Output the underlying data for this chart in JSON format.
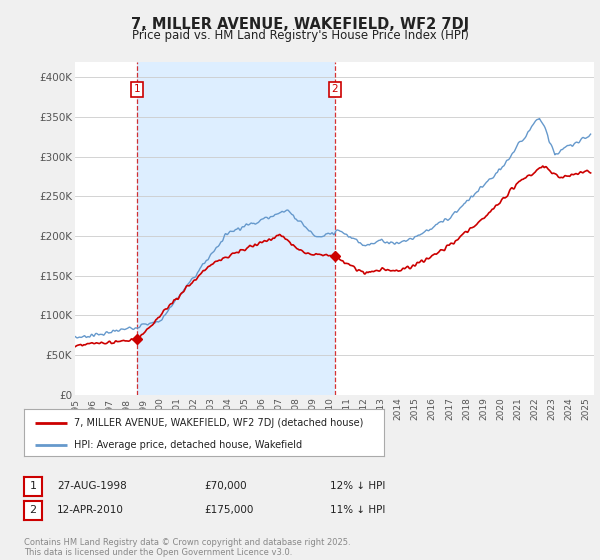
{
  "title": "7, MILLER AVENUE, WAKEFIELD, WF2 7DJ",
  "subtitle": "Price paid vs. HM Land Registry's House Price Index (HPI)",
  "ylabel_ticks": [
    "£0",
    "£50K",
    "£100K",
    "£150K",
    "£200K",
    "£250K",
    "£300K",
    "£350K",
    "£400K"
  ],
  "ytick_vals": [
    0,
    50000,
    100000,
    150000,
    200000,
    250000,
    300000,
    350000,
    400000
  ],
  "ylim": [
    0,
    420000
  ],
  "xlim_start": 1995,
  "xlim_end": 2025.5,
  "red_line_color": "#cc0000",
  "blue_line_color": "#6699cc",
  "marker1_date": 1998.65,
  "marker1_value": 70000,
  "marker2_date": 2010.28,
  "marker2_value": 175000,
  "legend_label_red": "7, MILLER AVENUE, WAKEFIELD, WF2 7DJ (detached house)",
  "legend_label_blue": "HPI: Average price, detached house, Wakefield",
  "table_row1": [
    "1",
    "27-AUG-1998",
    "£70,000",
    "12% ↓ HPI"
  ],
  "table_row2": [
    "2",
    "12-APR-2010",
    "£175,000",
    "11% ↓ HPI"
  ],
  "footnote": "Contains HM Land Registry data © Crown copyright and database right 2025.\nThis data is licensed under the Open Government Licence v3.0.",
  "background_color": "#f0f0f0",
  "plot_bg_color": "#ffffff",
  "shaded_bg_color": "#ddeeff",
  "grid_color": "#cccccc",
  "title_color": "#222222",
  "vline_color": "#cc0000"
}
